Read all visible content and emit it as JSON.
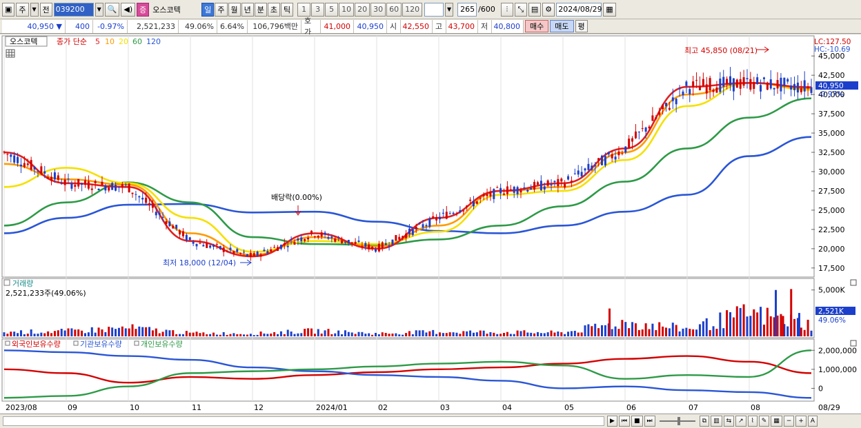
{
  "toolbar": {
    "period_main": "주",
    "prev_label": "전",
    "code": "039200",
    "stock_badge": "증",
    "stock_name": "오스코텍",
    "period_tabs": [
      "일",
      "주",
      "월",
      "년",
      "분",
      "초",
      "틱"
    ],
    "active_period": "일",
    "interval_buttons": [
      "1",
      "3",
      "5",
      "10",
      "20",
      "30",
      "60",
      "120"
    ],
    "count_value": "265",
    "count_total": "/600",
    "date": "2024/08/29"
  },
  "quote": {
    "price": "40,950",
    "change_arrow": "▼",
    "change": "400",
    "change_pct": "-0.97%",
    "volume": "2,521,233",
    "volume_ratio": "49.06%",
    "turnover": "6.64%",
    "amount": "106,796백만",
    "ask_label": "호가",
    "ask": "41,000",
    "bid": "40,950",
    "open_label": "시",
    "open": "42,550",
    "high_label": "고",
    "high": "43,700",
    "low_label": "저",
    "low": "40,800",
    "buy_label": "매수",
    "sell_label": "매도",
    "eval_label": "평"
  },
  "price_panel": {
    "name_tab": "오스코텍",
    "ma_label": "종가 단순",
    "ma_periods": [
      "5",
      "10",
      "20",
      "60",
      "120"
    ],
    "ma_colors": [
      "#e02020",
      "#ff9a00",
      "#f5e000",
      "#2e9a47",
      "#2a56d6"
    ],
    "lc": "LC:127.50",
    "hc": "HC:-10.69",
    "y_ticks": [
      "45,000",
      "42,500",
      "40,000",
      "37,500",
      "35,000",
      "32,500",
      "30,000",
      "27,500",
      "25,000",
      "22,500",
      "20,000",
      "17,500"
    ],
    "current_price_tag": "40,950",
    "current_pct_tag": "-0.97%",
    "high_annotation": "최고 45,850 (08/21)",
    "low_annotation": "최저 18,000 (12/04)",
    "dividend_annotation": "배당락(0.00%)"
  },
  "volume_panel": {
    "title": "거래량",
    "value": "2,521,233주(49.06%)",
    "y_ticks": [
      "5,000K"
    ],
    "current_tag": "2,521K",
    "current_pct": "49.06%"
  },
  "holding_panel": {
    "legend": [
      "외국인보유수량",
      "기관보유수량",
      "개인보유수량"
    ],
    "legend_colors": [
      "#d40000",
      "#2a56d6",
      "#2e9a47"
    ],
    "y_ticks": [
      "2,000,000",
      "1,000,000",
      "0"
    ]
  },
  "x_axis": {
    "labels": [
      "2023/08",
      "09",
      "10",
      "11",
      "12",
      "2024/01",
      "02",
      "03",
      "04",
      "05",
      "06",
      "07",
      "08"
    ],
    "end_label": "08/29"
  },
  "chart_data": [
    {
      "type": "line",
      "title": "",
      "xlabel": "",
      "ylabel": "",
      "x": [
        "2023/08",
        "09",
        "10",
        "11",
        "12",
        "2024/01",
        "02",
        "03",
        "04",
        "05",
        "06",
        "07",
        "08",
        "08/29"
      ],
      "ylim": [
        16500,
        46000
      ],
      "series": [
        {
          "name": "5",
          "values": [
            32500,
            28500,
            28000,
            21000,
            19000,
            22000,
            20000,
            24000,
            27500,
            28500,
            33000,
            41000,
            41500,
            40950
          ]
        },
        {
          "name": "10",
          "values": [
            31000,
            29000,
            28300,
            22000,
            19200,
            21500,
            20300,
            23000,
            27500,
            28000,
            32500,
            40000,
            41500,
            40800
          ]
        },
        {
          "name": "20",
          "values": [
            28000,
            30500,
            28500,
            24000,
            19600,
            21000,
            20600,
            22200,
            27000,
            27500,
            31500,
            38500,
            41500,
            40600
          ]
        },
        {
          "name": "60",
          "values": [
            23000,
            26000,
            28600,
            26000,
            21500,
            20600,
            20500,
            21200,
            23000,
            25500,
            28700,
            33000,
            37000,
            39500
          ]
        },
        {
          "name": "120",
          "values": [
            22000,
            24000,
            25700,
            25800,
            24700,
            24800,
            23500,
            22300,
            22000,
            23000,
            24800,
            27000,
            32000,
            34500
          ]
        }
      ]
    },
    {
      "type": "bar",
      "title": "",
      "xlabel": "",
      "ylabel": "",
      "categories": [
        "2023/08",
        "09",
        "10",
        "11",
        "12",
        "2024/01",
        "02",
        "03",
        "04",
        "05",
        "06",
        "07",
        "08",
        "08/29"
      ],
      "ylim": [
        0,
        5500
      ],
      "values": [
        900,
        1100,
        1800,
        700,
        600,
        1200,
        600,
        1000,
        900,
        800,
        3000,
        1600,
        5000,
        2521
      ]
    },
    {
      "type": "line",
      "title": "",
      "xlabel": "",
      "ylabel": "",
      "x": [
        "2023/08",
        "09",
        "10",
        "11",
        "12",
        "2024/01",
        "02",
        "03",
        "04",
        "05",
        "06",
        "07",
        "08",
        "08/29"
      ],
      "ylim": [
        -600000,
        2300000
      ],
      "series": [
        {
          "name": "외국인보유수량",
          "values": [
            1000000,
            800000,
            300000,
            600000,
            500000,
            700000,
            850000,
            1000000,
            1100000,
            1300000,
            1550000,
            1700000,
            1400000,
            800000
          ]
        },
        {
          "name": "기관보유수량",
          "values": [
            2000000,
            1900000,
            1700000,
            1500000,
            1100000,
            900000,
            700000,
            600000,
            400000,
            0,
            100000,
            -100000,
            -200000,
            -500000
          ]
        },
        {
          "name": "개인보유수량",
          "values": [
            -500000,
            -400000,
            100000,
            800000,
            900000,
            1000000,
            1150000,
            1300000,
            1400000,
            1200000,
            500000,
            700000,
            600000,
            2000000
          ]
        }
      ]
    }
  ]
}
